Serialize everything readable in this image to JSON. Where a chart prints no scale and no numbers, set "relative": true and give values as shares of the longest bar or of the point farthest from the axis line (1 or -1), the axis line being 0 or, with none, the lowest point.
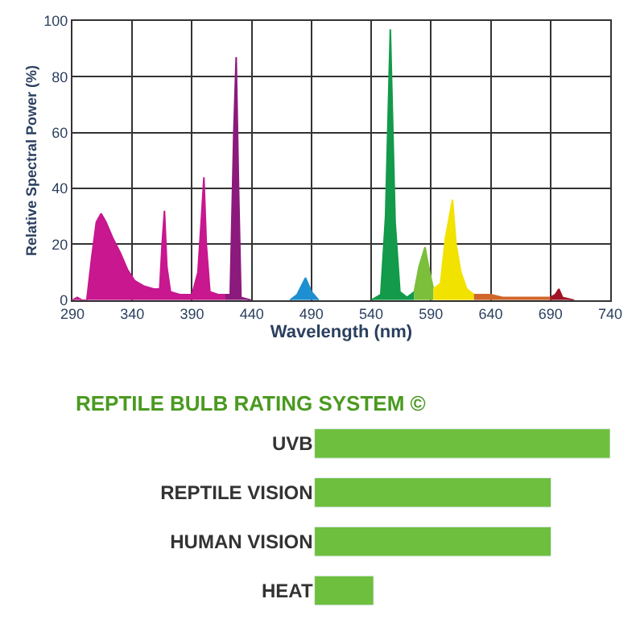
{
  "chart_data": [
    {
      "type": "area",
      "xlabel": "Wavelength (nm)",
      "ylabel": "Relative Spectral Power (%)",
      "xlim": [
        290,
        740
      ],
      "xticks": [
        290,
        340,
        390,
        440,
        490,
        540,
        590,
        640,
        690,
        740
      ],
      "ylim": [
        0,
        100
      ],
      "yticks": [
        0,
        20,
        40,
        60,
        80,
        100
      ],
      "grid": true,
      "series": [
        {
          "color": "#c8178f",
          "x": [
            290,
            294,
            298,
            302,
            306,
            310,
            314,
            318,
            324,
            330,
            336,
            342,
            350,
            358,
            363,
            365,
            367,
            369,
            372,
            380,
            390,
            395,
            398,
            400,
            402,
            405,
            412,
            418
          ],
          "values": [
            0,
            1,
            0,
            0,
            15,
            28,
            31,
            28,
            22,
            17,
            11,
            7,
            5,
            4,
            4,
            20,
            32,
            12,
            3,
            2,
            2,
            10,
            30,
            44,
            20,
            3,
            2,
            2
          ]
        },
        {
          "color": "#8c1a7c",
          "x": [
            418,
            422,
            425,
            427,
            429,
            431,
            440
          ],
          "values": [
            2,
            2,
            60,
            87,
            40,
            1,
            0
          ]
        },
        {
          "color": "#1e8fd0",
          "x": [
            472,
            478,
            485,
            490,
            496
          ],
          "values": [
            0,
            2,
            8,
            3,
            0
          ]
        },
        {
          "color": "#139a4a",
          "x": [
            540,
            548,
            552,
            556,
            560,
            564,
            570,
            576
          ],
          "values": [
            0,
            2,
            30,
            97,
            28,
            3,
            1,
            3
          ]
        },
        {
          "color": "#7bbf3a",
          "x": [
            576,
            580,
            585,
            588,
            592
          ],
          "values": [
            3,
            12,
            19,
            12,
            4
          ]
        },
        {
          "color": "#f2e200",
          "x": [
            592,
            598,
            602,
            608,
            611,
            615,
            620,
            626
          ],
          "values": [
            4,
            6,
            22,
            36,
            20,
            10,
            4,
            2
          ]
        },
        {
          "color": "#d0662a",
          "x": [
            626,
            640,
            650,
            660,
            675,
            690
          ],
          "values": [
            2,
            2,
            1,
            1,
            1,
            1
          ]
        },
        {
          "color": "#a01426",
          "x": [
            690,
            694,
            697,
            700,
            710
          ],
          "values": [
            1,
            2,
            4,
            1,
            0
          ]
        }
      ]
    },
    {
      "type": "bar",
      "orientation": "horizontal",
      "relative": true,
      "title": "REPTILE BULB RATING SYSTEM ©",
      "categories": [
        "UVB",
        "REPTILE VISION",
        "HUMAN VISION",
        "HEAT"
      ],
      "values": [
        1,
        0.8,
        0.8,
        0.2
      ],
      "color": "#6dbf3d"
    }
  ]
}
